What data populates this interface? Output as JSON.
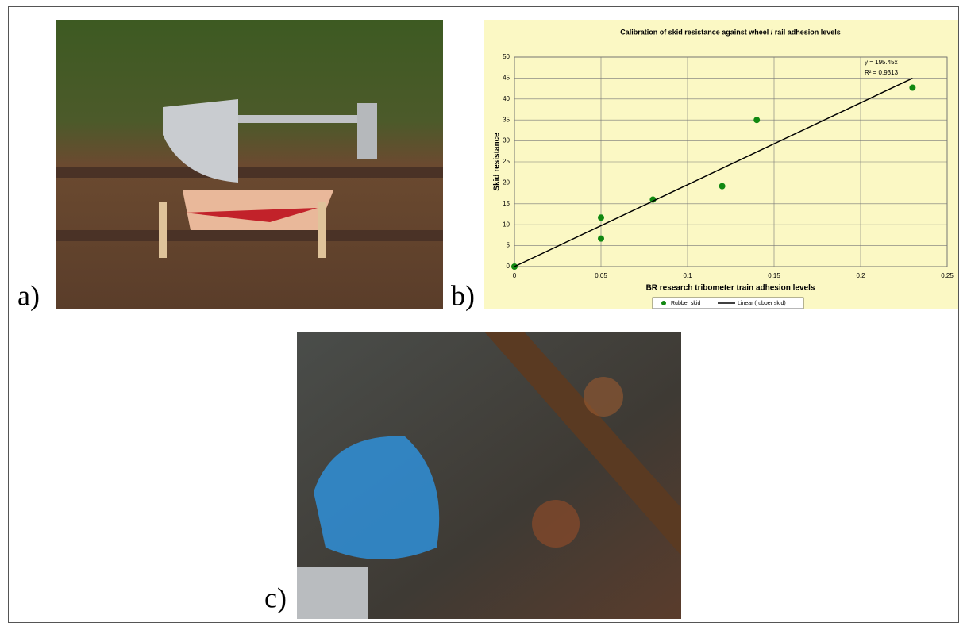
{
  "panels": {
    "a": "a)",
    "b": "b)",
    "c": "c)"
  },
  "chart_data": {
    "type": "scatter",
    "title": "Calibration of skid resistance against wheel / rail adhesion levels",
    "x_label": "BR research tribometer train adhesion levels",
    "y_label": "Skid resistance",
    "annotations": [
      "y = 195.45x",
      "R² = 0.9313"
    ],
    "xlim": [
      0,
      0.25
    ],
    "xticks": [
      0,
      0.05,
      0.1,
      0.15,
      0.2,
      0.25
    ],
    "ylim": [
      0,
      50
    ],
    "yticks": [
      0,
      5,
      10,
      15,
      20,
      25,
      30,
      35,
      40,
      45,
      50
    ],
    "grid": true,
    "legend": "bottom",
    "series": [
      {
        "name": "Rubber skid",
        "type": "scatter",
        "color": "#118811",
        "x": [
          0,
          0.05,
          0.05,
          0.08,
          0.12,
          0.14,
          0.23
        ],
        "values": [
          0,
          11.7,
          6.7,
          16,
          19.2,
          35,
          42.7
        ]
      },
      {
        "name": "Linear (rubber skid)",
        "type": "line",
        "color": "#000000",
        "x": [
          0,
          0.23
        ],
        "values": [
          0,
          44.95
        ]
      }
    ]
  }
}
